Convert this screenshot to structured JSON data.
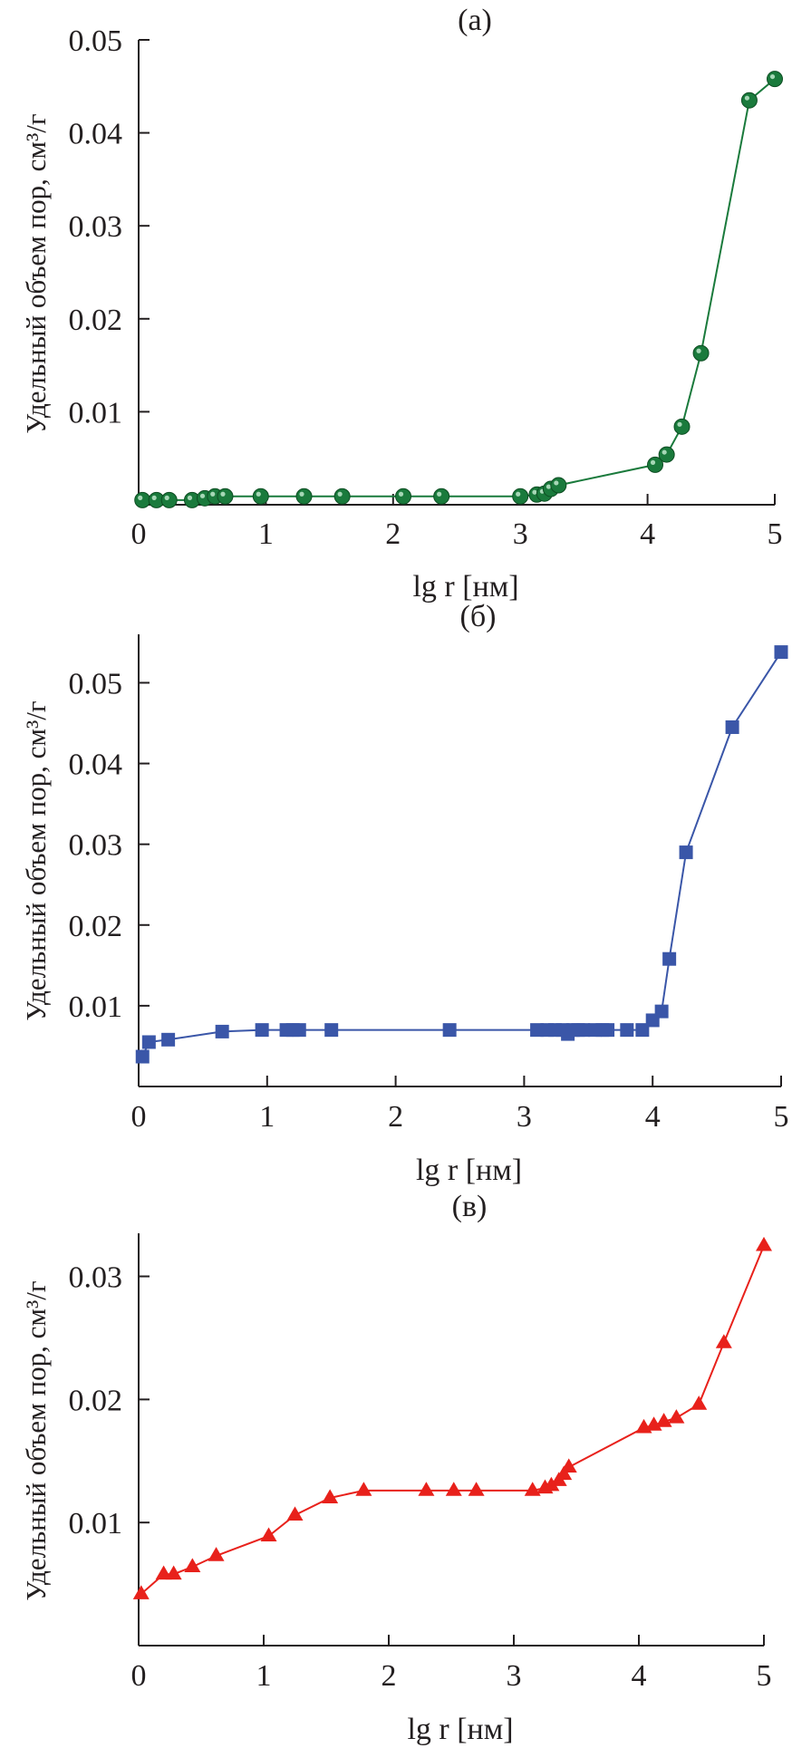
{
  "chart_data": [
    {
      "type": "line",
      "title": "(а)",
      "xlabel": "lg r [нм]",
      "ylabel": "Удельный объем пор, см³/г",
      "xlim": [
        0,
        5
      ],
      "ylim": [
        0,
        0.05
      ],
      "xticks": [
        0,
        1,
        2,
        3,
        4,
        5
      ],
      "yticks": [
        0.01,
        0.02,
        0.03,
        0.04,
        0.05
      ],
      "ytick_labels": [
        "0.01",
        "0.02",
        "0.03",
        "0.04",
        "0.05"
      ],
      "grid": false,
      "marker": "circle",
      "color": "#1a7a3c",
      "series": [
        {
          "x": [
            0.03,
            0.14,
            0.24,
            0.42,
            0.52,
            0.6,
            0.68,
            0.96,
            1.3,
            1.6,
            2.08,
            2.38,
            3.0,
            3.13,
            3.19,
            3.24,
            3.3,
            4.06,
            4.15,
            4.27,
            4.42,
            4.8,
            5.0
          ],
          "y": [
            0.0005,
            0.0005,
            0.0005,
            0.0005,
            0.0007,
            0.0009,
            0.0009,
            0.0009,
            0.0009,
            0.0009,
            0.0009,
            0.0009,
            0.0009,
            0.0011,
            0.0012,
            0.0017,
            0.0021,
            0.0043,
            0.0054,
            0.0084,
            0.0163,
            0.0435,
            0.0458
          ]
        }
      ]
    },
    {
      "type": "line",
      "title": "(б)",
      "xlabel": "lg r [нм]",
      "ylabel": "Удельный объем пор, см³/г",
      "xlim": [
        0,
        5
      ],
      "ylim": [
        0,
        0.056
      ],
      "xticks": [
        0,
        1,
        2,
        3,
        4,
        5
      ],
      "yticks": [
        0.01,
        0.02,
        0.03,
        0.04,
        0.05
      ],
      "ytick_labels": [
        "0.01",
        "0.02",
        "0.03",
        "0.04",
        "0.05"
      ],
      "grid": false,
      "marker": "square",
      "color": "#3a56a8",
      "series": [
        {
          "x": [
            0.03,
            0.08,
            0.23,
            0.65,
            0.96,
            1.15,
            1.2,
            1.25,
            1.5,
            2.42,
            3.1,
            3.18,
            3.24,
            3.3,
            3.34,
            3.38,
            3.42,
            3.46,
            3.55,
            3.61,
            3.65,
            3.8,
            3.92,
            4.0,
            4.07,
            4.13,
            4.26,
            4.62,
            5.0
          ],
          "y": [
            0.0037,
            0.0055,
            0.0058,
            0.0068,
            0.007,
            0.007,
            0.007,
            0.007,
            0.007,
            0.007,
            0.007,
            0.007,
            0.007,
            0.007,
            0.0065,
            0.007,
            0.007,
            0.007,
            0.007,
            0.007,
            0.007,
            0.007,
            0.007,
            0.0082,
            0.0093,
            0.0158,
            0.029,
            0.0445,
            0.0538
          ]
        }
      ]
    },
    {
      "type": "line",
      "title": "(в)",
      "xlabel": "lg r [нм]",
      "ylabel": "Удельный объем пор, см³/г",
      "xlim": [
        0,
        5
      ],
      "ylim": [
        0,
        0.0335
      ],
      "xticks": [
        0,
        1,
        2,
        3,
        4,
        5
      ],
      "yticks": [
        0.01,
        0.02,
        0.03
      ],
      "ytick_labels": [
        "0.01",
        "0.02",
        "0.03"
      ],
      "grid": false,
      "marker": "triangle",
      "color": "#e8211b",
      "series": [
        {
          "x": [
            0.02,
            0.2,
            0.28,
            0.43,
            0.62,
            1.04,
            1.25,
            1.53,
            1.8,
            2.3,
            2.52,
            2.7,
            3.15,
            3.25,
            3.3,
            3.36,
            3.4,
            3.44,
            4.04,
            4.12,
            4.2,
            4.3,
            4.48,
            4.68,
            5.0
          ],
          "y": [
            0.0042,
            0.0058,
            0.0058,
            0.0064,
            0.0073,
            0.0089,
            0.0106,
            0.012,
            0.0126,
            0.0126,
            0.0126,
            0.0126,
            0.0126,
            0.0128,
            0.013,
            0.0134,
            0.0139,
            0.0145,
            0.0177,
            0.0179,
            0.0182,
            0.0185,
            0.0196,
            0.0246,
            0.0325
          ]
        }
      ]
    }
  ]
}
